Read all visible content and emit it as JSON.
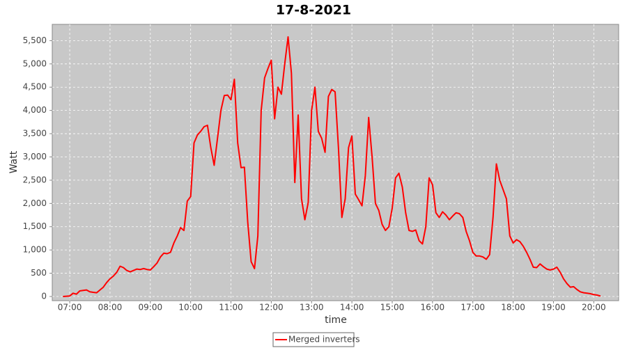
{
  "chart_data": {
    "type": "line",
    "title": "17-8-2021",
    "x_label": "time",
    "y_label": "Watt",
    "x": [
      "06:50",
      "07:00",
      "07:05",
      "07:10",
      "07:15",
      "07:20",
      "07:25",
      "07:30",
      "07:35",
      "07:40",
      "07:45",
      "07:50",
      "07:55",
      "08:00",
      "08:05",
      "08:10",
      "08:15",
      "08:20",
      "08:25",
      "08:30",
      "08:35",
      "08:40",
      "08:45",
      "08:50",
      "08:55",
      "09:00",
      "09:05",
      "09:10",
      "09:15",
      "09:20",
      "09:25",
      "09:30",
      "09:35",
      "09:40",
      "09:45",
      "09:50",
      "09:55",
      "10:00",
      "10:05",
      "10:10",
      "10:15",
      "10:20",
      "10:25",
      "10:30",
      "10:35",
      "10:40",
      "10:45",
      "10:50",
      "10:55",
      "11:00",
      "11:05",
      "11:10",
      "11:15",
      "11:20",
      "11:25",
      "11:30",
      "11:35",
      "11:40",
      "11:45",
      "11:50",
      "11:55",
      "12:00",
      "12:05",
      "12:10",
      "12:15",
      "12:20",
      "12:25",
      "12:30",
      "12:35",
      "12:40",
      "12:45",
      "12:50",
      "12:55",
      "13:00",
      "13:05",
      "13:10",
      "13:15",
      "13:20",
      "13:25",
      "13:30",
      "13:35",
      "13:40",
      "13:45",
      "13:50",
      "13:55",
      "14:00",
      "14:05",
      "14:10",
      "14:15",
      "14:20",
      "14:25",
      "14:30",
      "14:35",
      "14:40",
      "14:45",
      "14:50",
      "14:55",
      "15:00",
      "15:05",
      "15:10",
      "15:15",
      "15:20",
      "15:25",
      "15:30",
      "15:35",
      "15:40",
      "15:45",
      "15:50",
      "15:55",
      "16:00",
      "16:05",
      "16:10",
      "16:15",
      "16:20",
      "16:25",
      "16:30",
      "16:35",
      "16:40",
      "16:45",
      "16:50",
      "16:55",
      "17:00",
      "17:05",
      "17:10",
      "17:15",
      "17:20",
      "17:25",
      "17:30",
      "17:35",
      "17:40",
      "17:45",
      "17:50",
      "17:55",
      "18:00",
      "18:05",
      "18:10",
      "18:15",
      "18:20",
      "18:25",
      "18:30",
      "18:35",
      "18:40",
      "18:45",
      "18:50",
      "18:55",
      "19:00",
      "19:05",
      "19:10",
      "19:15",
      "19:20",
      "19:25",
      "19:30",
      "19:35",
      "19:40",
      "19:45",
      "19:50",
      "19:55",
      "20:00",
      "20:05",
      "20:10"
    ],
    "series": [
      {
        "name": "Merged inverters",
        "color": "#ff0000",
        "values": [
          0,
          10,
          70,
          50,
          120,
          130,
          140,
          100,
          90,
          80,
          140,
          200,
          300,
          380,
          440,
          520,
          650,
          620,
          560,
          530,
          560,
          590,
          580,
          600,
          580,
          570,
          640,
          720,
          850,
          930,
          920,
          950,
          1150,
          1300,
          1480,
          1420,
          2050,
          2150,
          3300,
          3470,
          3550,
          3650,
          3680,
          3200,
          2820,
          3400,
          4000,
          4320,
          4330,
          4230,
          4670,
          3300,
          2770,
          2780,
          1600,
          750,
          600,
          1300,
          4000,
          4700,
          4900,
          5080,
          3820,
          4500,
          4350,
          5000,
          5580,
          4800,
          2450,
          3900,
          2100,
          1650,
          2020,
          4000,
          4500,
          3550,
          3400,
          3100,
          4300,
          4450,
          4400,
          3200,
          1700,
          2100,
          3200,
          3450,
          2200,
          2080,
          1950,
          2600,
          3850,
          3000,
          2000,
          1850,
          1550,
          1420,
          1500,
          1900,
          2550,
          2650,
          2350,
          1800,
          1420,
          1400,
          1430,
          1200,
          1130,
          1500,
          2550,
          2400,
          1800,
          1700,
          1820,
          1750,
          1650,
          1730,
          1800,
          1780,
          1700,
          1400,
          1200,
          950,
          870,
          870,
          850,
          800,
          900,
          1700,
          2850,
          2500,
          2300,
          2100,
          1300,
          1150,
          1220,
          1180,
          1080,
          950,
          800,
          630,
          620,
          700,
          640,
          590,
          570,
          590,
          630,
          520,
          380,
          280,
          200,
          210,
          150,
          100,
          80,
          70,
          60,
          40,
          30,
          10
        ]
      }
    ],
    "xlim": [
      "06:34",
      "20:37"
    ],
    "xticks": [
      "07:00",
      "08:00",
      "09:00",
      "10:00",
      "11:00",
      "12:00",
      "13:00",
      "14:00",
      "15:00",
      "16:00",
      "17:00",
      "18:00",
      "19:00",
      "20:00"
    ],
    "ylim": [
      -90,
      5850
    ],
    "yticks": [
      0,
      500,
      {
        "value": 1000,
        "label": "1,000"
      },
      {
        "value": 1500,
        "label": "1,500"
      },
      {
        "value": 2000,
        "label": "2,000"
      },
      {
        "value": 2500,
        "label": "2,500"
      },
      {
        "value": 3000,
        "label": "3,000"
      },
      {
        "value": 3500,
        "label": "3,500"
      },
      {
        "value": 4000,
        "label": "4,000"
      },
      {
        "value": 4500,
        "label": "4,500"
      },
      {
        "value": 5000,
        "label": "5,000"
      },
      {
        "value": 5500,
        "label": "5,500"
      }
    ],
    "grid": true,
    "legend": "bottom"
  }
}
